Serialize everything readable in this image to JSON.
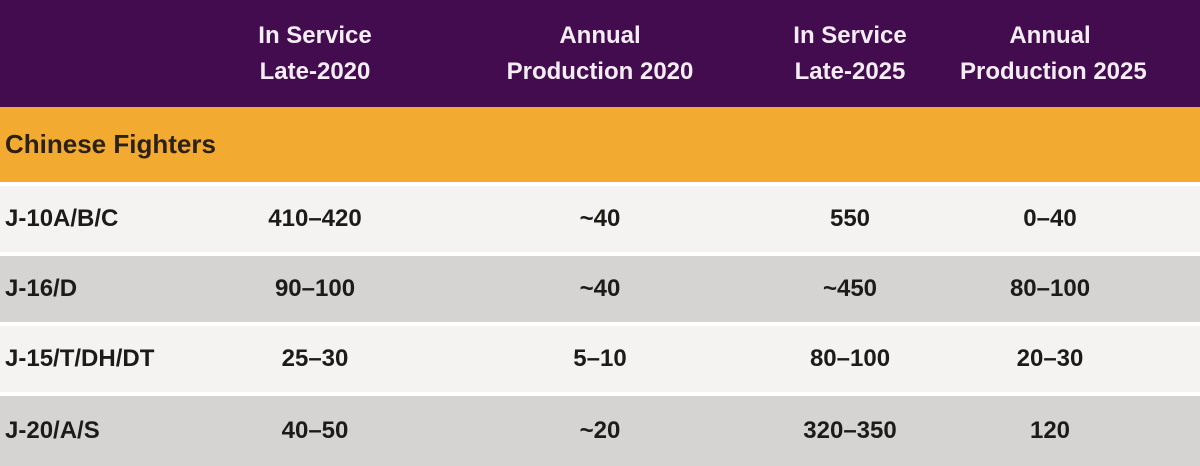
{
  "colors": {
    "purple": "#420c4e",
    "orange": "#f2ab30",
    "rowLight": "#f4f3f1",
    "rowGray": "#d6d4d2",
    "sep": "#ffffff",
    "headerText": "#f4eef4",
    "sectionText": "#2b2118",
    "darkText": "#1d1b18"
  },
  "table": {
    "columns": [
      {
        "line1": "",
        "line2": ""
      },
      {
        "line1": "In Service",
        "line2": "Late-2020"
      },
      {
        "line1": "Annual",
        "line2": "Production 2020"
      },
      {
        "line1": "In Service",
        "line2": "Late-2025"
      },
      {
        "line1": "Annual",
        "line2": "Production 2025"
      }
    ],
    "section_label": "Chinese Fighters",
    "rows": [
      {
        "label": "J-10A/B/C",
        "values": [
          "410–420",
          "~40",
          "550",
          "0–40"
        ]
      },
      {
        "label": "J-16/D",
        "values": [
          "90–100",
          "~40",
          "~450",
          "80–100"
        ]
      },
      {
        "label": "J-15/T/DH/DT",
        "values": [
          "25–30",
          "5–10",
          "80–100",
          "20–30"
        ]
      },
      {
        "label": "J-20/A/S",
        "values": [
          "40–50",
          "~20",
          "320–350",
          "120"
        ]
      }
    ]
  },
  "chart_data": {
    "type": "table",
    "columns": [
      "",
      "In Service Late-2020",
      "Annual Production 2020",
      "In Service Late-2025",
      "Annual Production 2025"
    ],
    "section": "Chinese Fighters",
    "rows": [
      [
        "J-10A/B/C",
        "410–420",
        "~40",
        "550",
        "0–40"
      ],
      [
        "J-16/D",
        "90–100",
        "~40",
        "~450",
        "80–100"
      ],
      [
        "J-15/T/DH/DT",
        "25–30",
        "5–10",
        "80–100",
        "20–30"
      ],
      [
        "J-20/A/S",
        "40–50",
        "~20",
        "320–350",
        "120"
      ]
    ]
  }
}
